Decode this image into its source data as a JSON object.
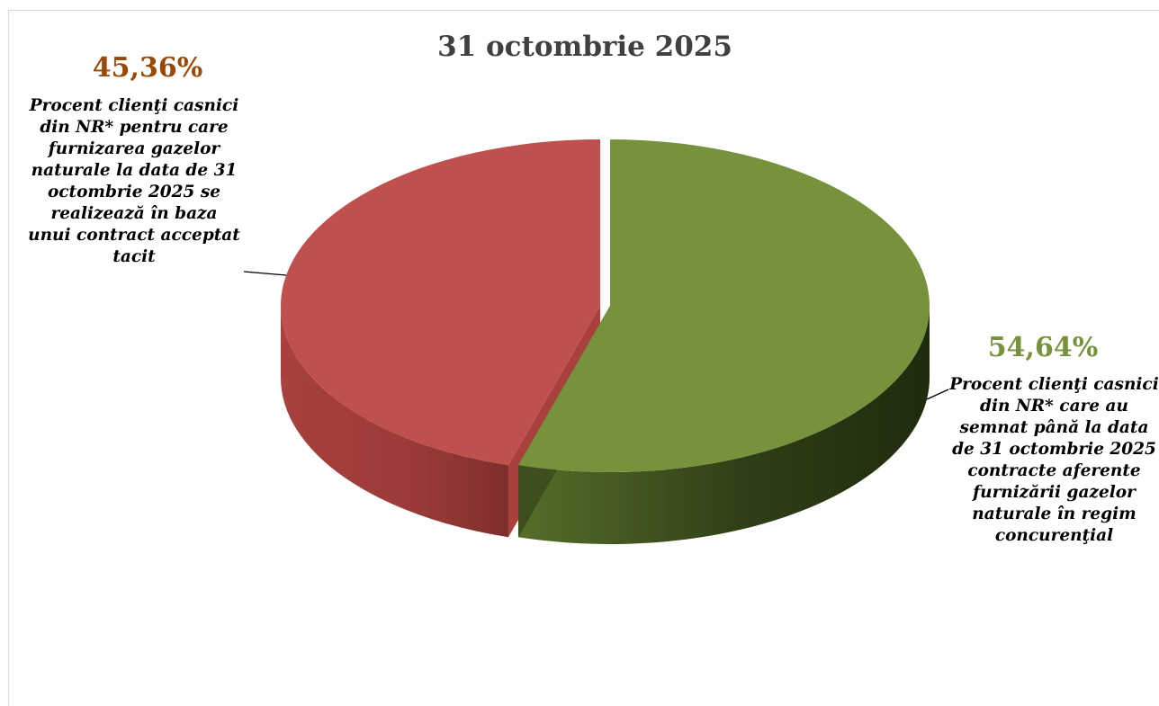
{
  "chart_data": {
    "type": "pie",
    "title": "31 octombrie 2025",
    "slices": [
      {
        "value": 54.64,
        "percent_label": "54,64%",
        "label": "Procent clienţi casnici\ndin NR* care au\nsemnat până la data\nde 31 octombrie 2025\ncontracte aferente\nfurnizării gazelor\nnaturale în regim\nconcurenţial",
        "color": "#76923c",
        "label_color": "#76923c"
      },
      {
        "value": 45.36,
        "percent_label": "45,36%",
        "label": "Procent clienţi casnici\ndin NR* pentru care\nfurnizarea gazelor\nnaturale la data de 31\noctombrie 2025 se\nrealizează în baza\nunui contract acceptat\ntacit",
        "color": "#c0504d",
        "label_color": "#984807"
      }
    ],
    "style": "3d-exploded",
    "legend": "none"
  }
}
